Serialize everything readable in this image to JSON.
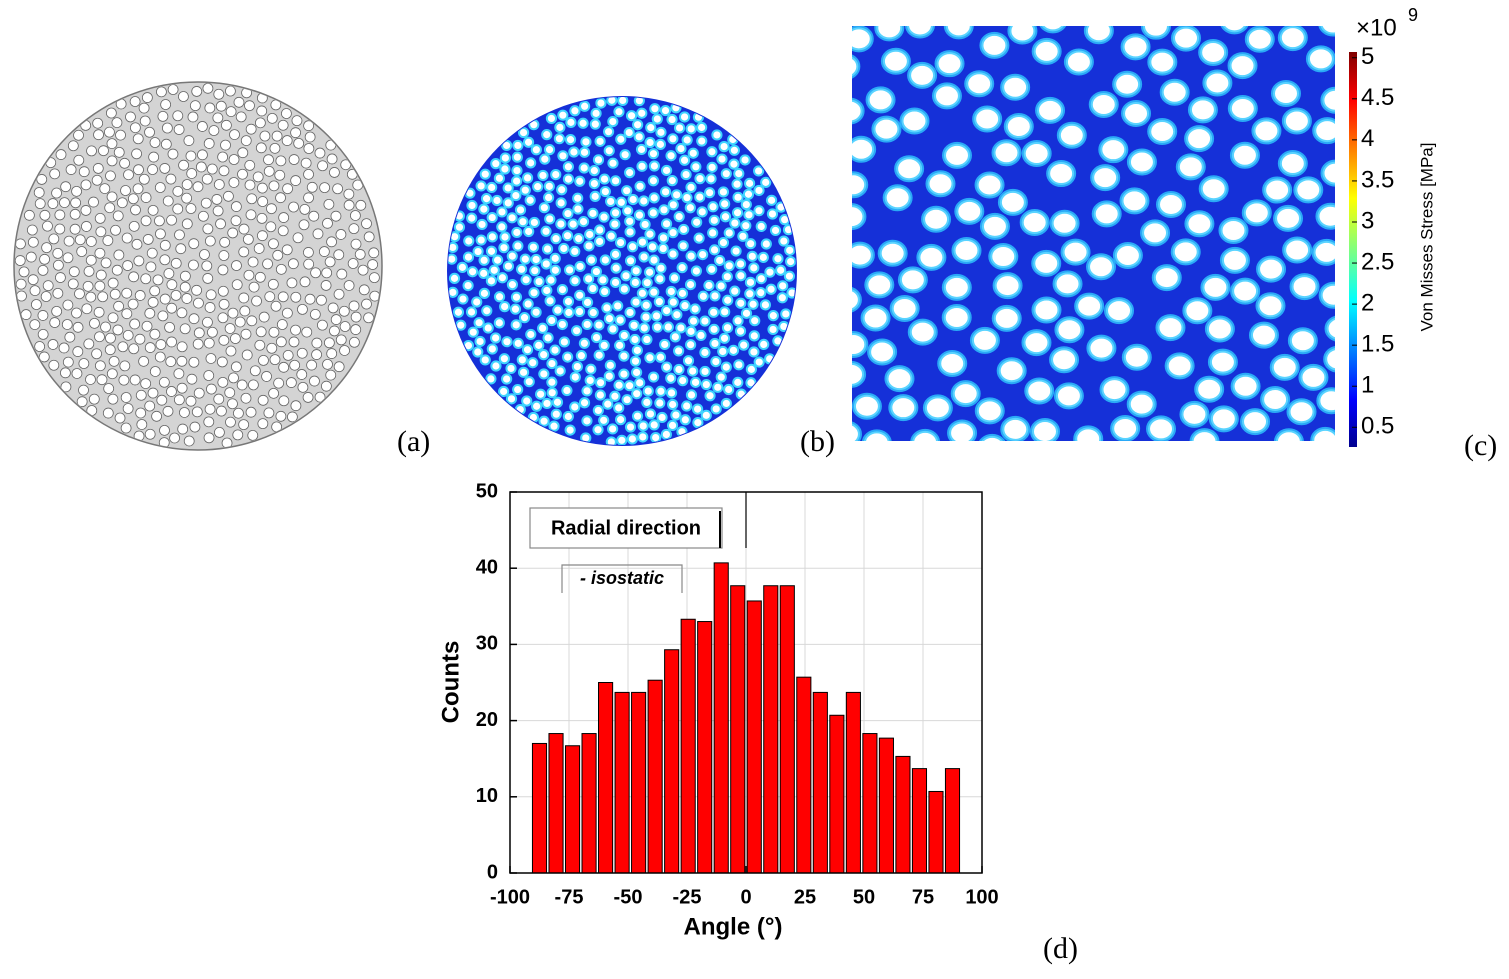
{
  "panel_labels": [
    "(a)",
    "(b)",
    "(c)",
    "(d)"
  ],
  "colorbar": {
    "label": "Von Misses Stress [MPa]",
    "multiplier": "×10",
    "exponent": "9",
    "lim": [
      0.26,
      5.07
    ],
    "ticks": [
      5,
      4.5,
      4,
      3.5,
      3,
      2.5,
      2,
      1.5,
      1,
      0.5
    ]
  },
  "chart_data": {
    "type": "histogram",
    "bins": [
      -91,
      -84,
      -77,
      -70,
      -63,
      -56,
      -49,
      -42,
      -35,
      -28,
      -21,
      -14,
      -7,
      0,
      7,
      14,
      21,
      28,
      35,
      42,
      49,
      56,
      63,
      70,
      77,
      84,
      91
    ],
    "values": [
      17,
      18.3,
      16.7,
      18.3,
      25,
      23.7,
      23.7,
      25.3,
      29.3,
      33.3,
      33,
      40.7,
      37.7,
      35.7,
      37.7,
      37.7,
      25.7,
      23.7,
      20.7,
      23.7,
      18.3,
      17.7,
      15.3,
      13.7,
      10.7,
      13.7
    ],
    "color": "#ff0000",
    "x_label": "Angle (°)",
    "y_label": "Counts",
    "annotations": [
      "Radial direction",
      "- isostatic"
    ],
    "xlim": [
      -100,
      100
    ],
    "xticks": [
      -100,
      -75,
      -50,
      -25,
      0,
      25,
      50,
      75,
      100
    ],
    "ylim": [
      0,
      50
    ],
    "yticks": [
      0,
      10,
      20,
      30,
      40,
      50
    ],
    "grid": true
  }
}
